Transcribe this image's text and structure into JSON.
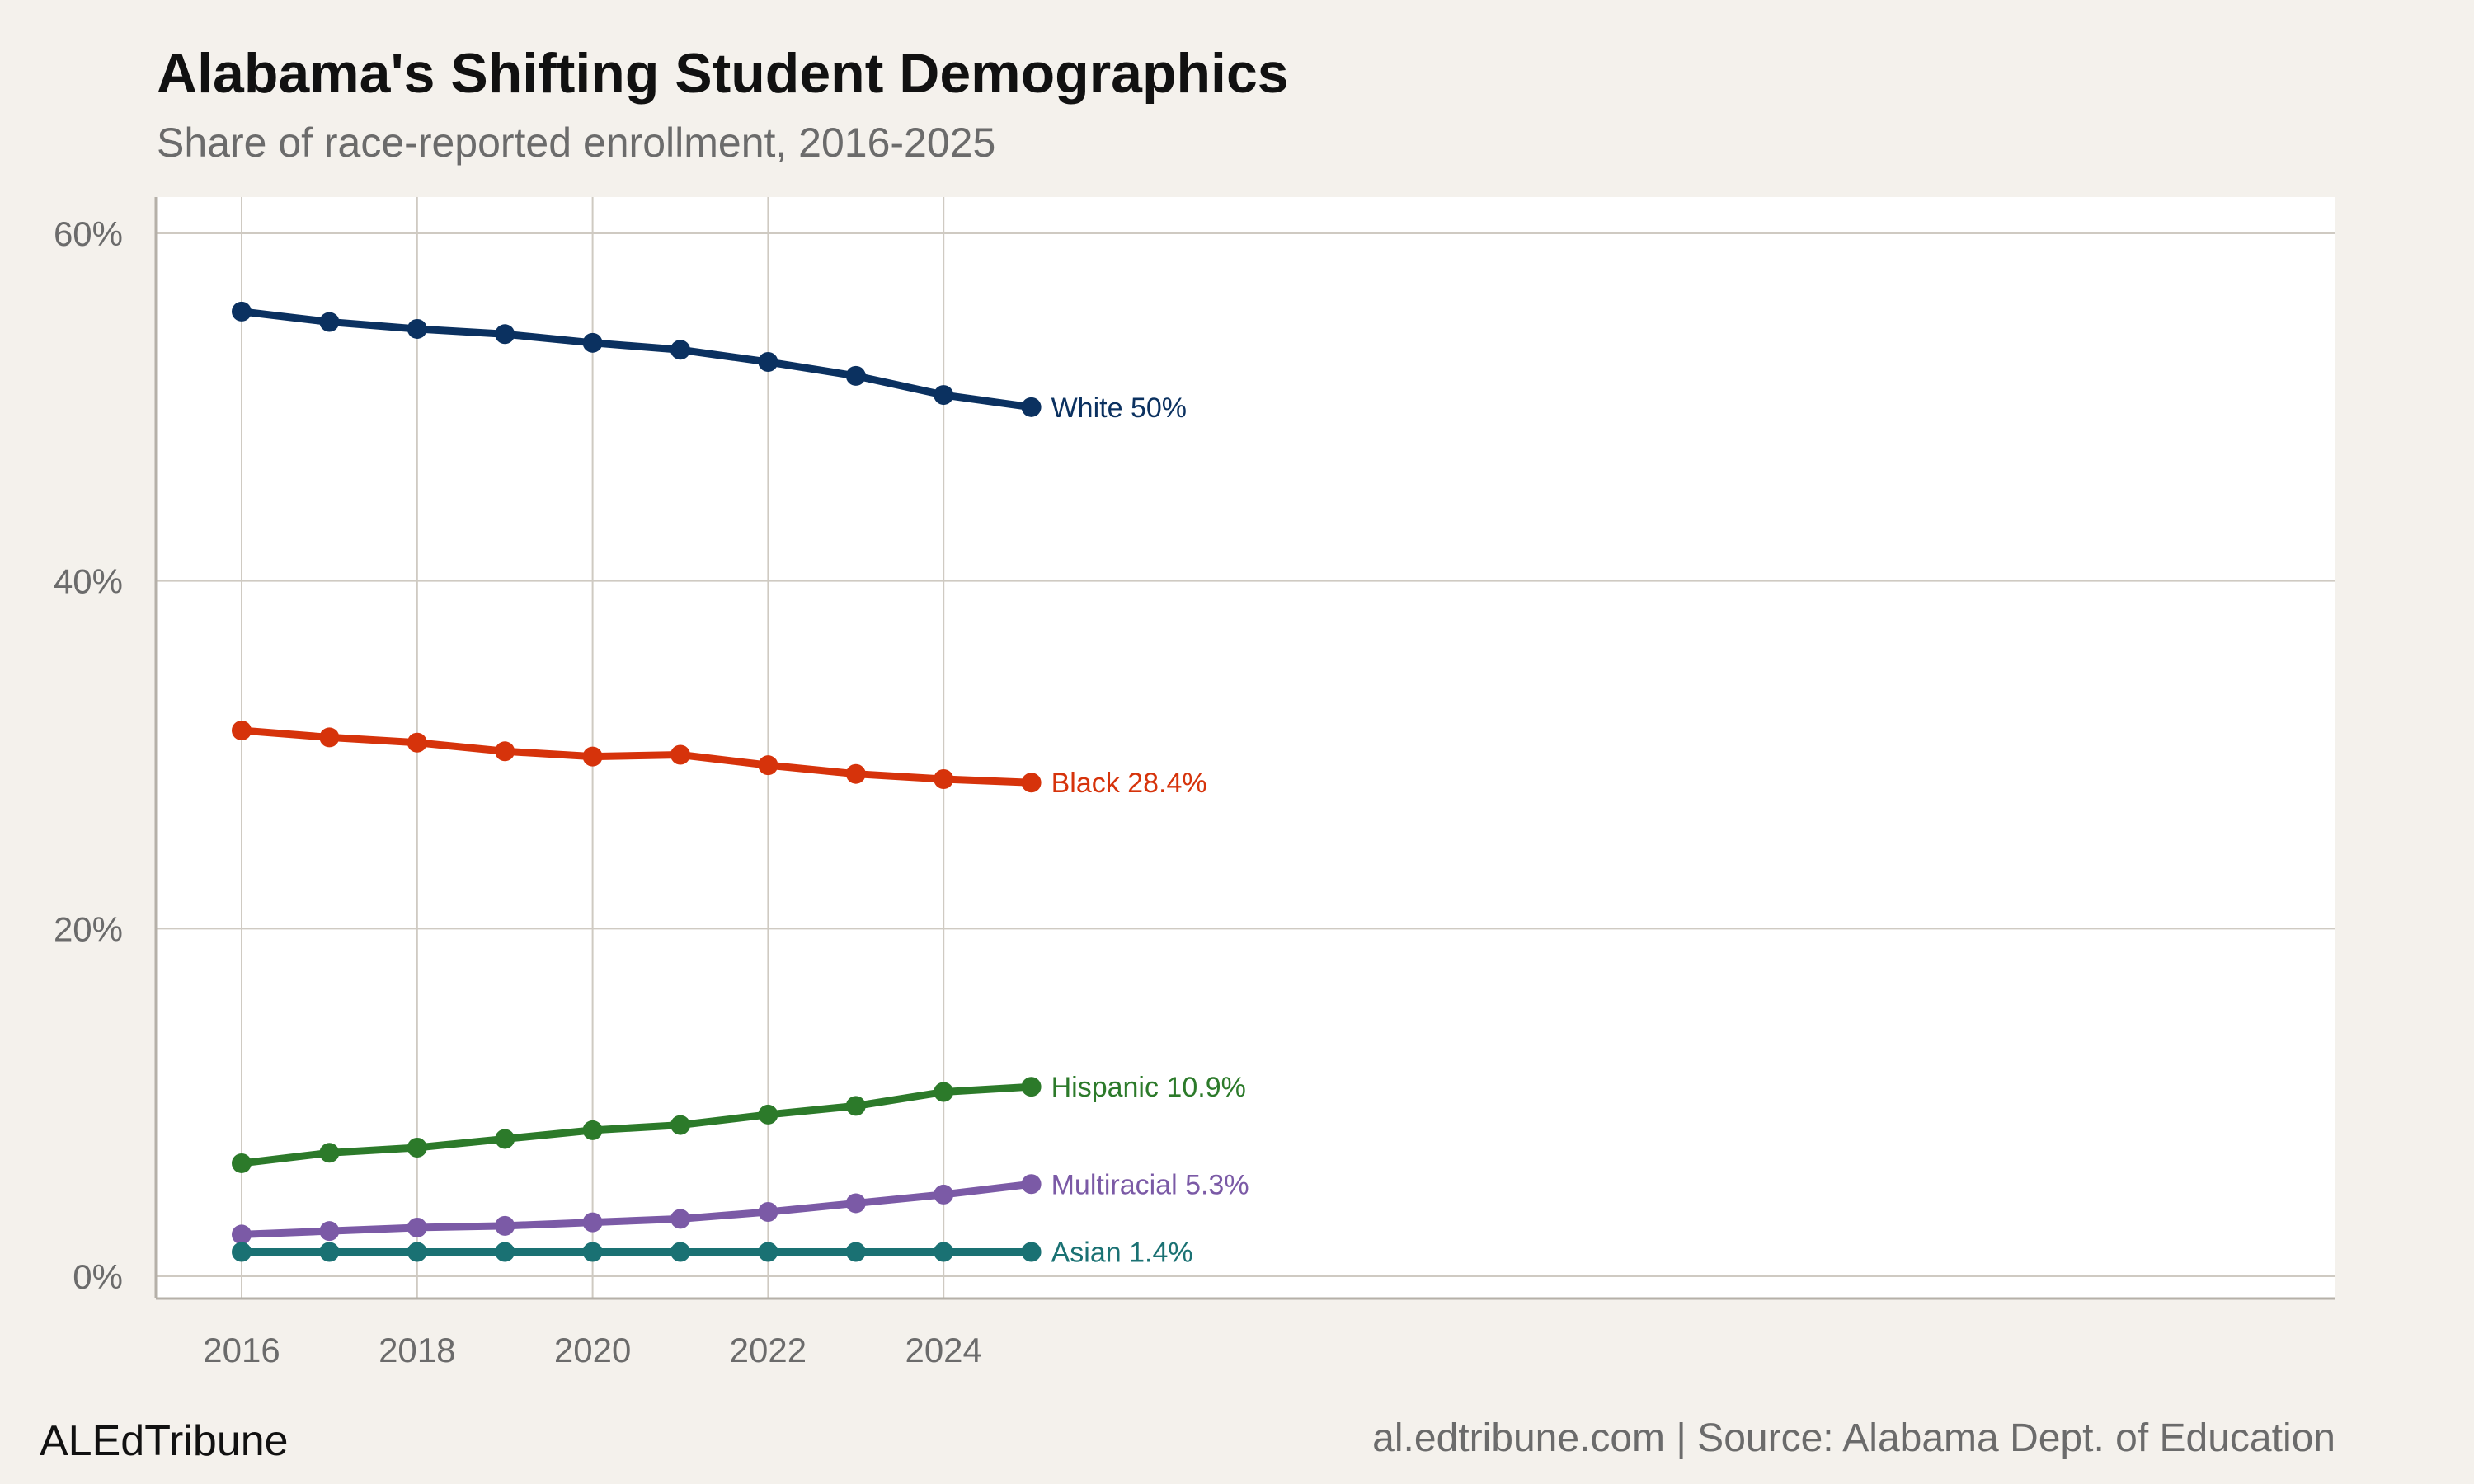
{
  "chart_data": {
    "type": "line",
    "title": "Alabama's Shifting Student Demographics",
    "subtitle": "Share of race-reported enrollment, 2016-2025",
    "xlabel": "",
    "ylabel": "",
    "x": [
      2016,
      2017,
      2018,
      2019,
      2020,
      2021,
      2022,
      2023,
      2024,
      2025
    ],
    "x_ticks": [
      "2016",
      "2018",
      "2020",
      "2022",
      "2024"
    ],
    "y_ticks": [
      "0%",
      "20%",
      "40%",
      "60%"
    ],
    "ylim": [
      -1.3,
      62
    ],
    "xlim": [
      2015.55,
      2027.45
    ],
    "grid": true,
    "legend": "direct labels at line ends",
    "series": [
      {
        "name": "White",
        "label": "White 50%",
        "color": "#0b3160",
        "values": [
          55.5,
          54.9,
          54.5,
          54.2,
          53.7,
          53.3,
          52.6,
          51.8,
          50.7,
          50.0
        ]
      },
      {
        "name": "Black",
        "label": "Black 28.4%",
        "color": "#d6330b",
        "values": [
          31.4,
          31.0,
          30.7,
          30.2,
          29.9,
          30.0,
          29.4,
          28.9,
          28.6,
          28.4
        ]
      },
      {
        "name": "Hispanic",
        "label": "Hispanic 10.9%",
        "color": "#2c7a2a",
        "values": [
          6.5,
          7.1,
          7.4,
          7.9,
          8.4,
          8.7,
          9.3,
          9.8,
          10.6,
          10.9
        ]
      },
      {
        "name": "Multiracial",
        "label": "Multiracial 5.3%",
        "color": "#7b5aa6",
        "values": [
          2.4,
          2.6,
          2.8,
          2.9,
          3.1,
          3.3,
          3.7,
          4.2,
          4.7,
          5.3
        ]
      },
      {
        "name": "Asian",
        "label": "Asian 1.4%",
        "color": "#1a7173",
        "values": [
          1.4,
          1.4,
          1.4,
          1.4,
          1.4,
          1.4,
          1.4,
          1.4,
          1.4,
          1.4
        ]
      }
    ]
  },
  "footer": {
    "brand": "ALEdTribune",
    "source": "al.edtribune.com | Source: Alabama Dept. of Education"
  }
}
